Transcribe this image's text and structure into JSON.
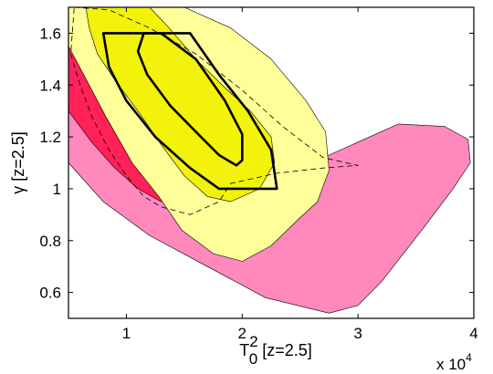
{
  "chart_data": {
    "type": "contour",
    "xlabel": "T_0^2 [z=2.5]",
    "xlabel_main": "T",
    "xlabel_sub": "0",
    "xlabel_sup": "2",
    "xlabel_tail": " [z=2.5]",
    "ylabel": "γ [z=2.5]",
    "x_multiplier_label": "x 10",
    "x_multiplier_exp": "4",
    "x_multiplier_power": 4,
    "xlim": [
      0.5,
      4.0
    ],
    "ylim": [
      0.5,
      1.7
    ],
    "xticks": [
      1,
      2,
      3,
      4
    ],
    "yticks": [
      0.6,
      0.8,
      1.0,
      1.2,
      1.4,
      1.6
    ],
    "xtick_labels": [
      "1",
      "2",
      "3",
      "4"
    ],
    "ytick_labels": [
      "0.6",
      "0.8",
      "1",
      "1.2",
      "1.4",
      "1.6"
    ],
    "grid": false,
    "colors": {
      "pink_region": "#ff88bd",
      "red_region": "#ff2157",
      "yellow_outer": "#ffff99",
      "yellow_inner": "#f2f20a",
      "outline": "#000000"
    },
    "regions": [
      {
        "name": "pink-region",
        "fill": "#ff88bd",
        "points": [
          [
            0.5,
            1.1
          ],
          [
            0.8,
            0.95
          ],
          [
            1.2,
            0.82
          ],
          [
            1.7,
            0.7
          ],
          [
            2.2,
            0.58
          ],
          [
            2.75,
            0.52
          ],
          [
            3.0,
            0.55
          ],
          [
            3.2,
            0.64
          ],
          [
            3.55,
            0.84
          ],
          [
            3.82,
            1.0
          ],
          [
            3.97,
            1.1
          ],
          [
            3.95,
            1.19
          ],
          [
            3.75,
            1.24
          ],
          [
            3.35,
            1.25
          ],
          [
            3.0,
            1.18
          ],
          [
            2.6,
            1.1
          ],
          [
            2.2,
            1.08
          ],
          [
            1.8,
            1.14
          ],
          [
            1.2,
            1.29
          ],
          [
            0.8,
            1.45
          ],
          [
            0.5,
            1.55
          ]
        ]
      },
      {
        "name": "red-region",
        "fill": "#ff2157",
        "points": [
          [
            0.5,
            1.3
          ],
          [
            0.5,
            1.55
          ],
          [
            0.55,
            1.56
          ],
          [
            0.75,
            1.44
          ],
          [
            0.9,
            1.26
          ],
          [
            1.05,
            1.18
          ],
          [
            1.3,
            1.06
          ],
          [
            1.45,
            0.97
          ],
          [
            1.3,
            0.95
          ],
          [
            1.1,
            1.0
          ],
          [
            0.9,
            1.08
          ],
          [
            0.7,
            1.18
          ]
        ]
      },
      {
        "name": "yellow-outer-region",
        "fill": "#ffff99",
        "points": [
          [
            0.55,
            1.7
          ],
          [
            1.5,
            1.7
          ],
          [
            1.9,
            1.62
          ],
          [
            2.25,
            1.5
          ],
          [
            2.55,
            1.34
          ],
          [
            2.72,
            1.22
          ],
          [
            2.75,
            1.07
          ],
          [
            2.65,
            0.95
          ],
          [
            2.48,
            0.88
          ],
          [
            2.25,
            0.78
          ],
          [
            2.0,
            0.72
          ],
          [
            1.75,
            0.75
          ],
          [
            1.48,
            0.84
          ],
          [
            1.28,
            0.97
          ],
          [
            1.05,
            1.1
          ],
          [
            0.82,
            1.28
          ],
          [
            0.62,
            1.45
          ],
          [
            0.5,
            1.55
          ],
          [
            0.5,
            1.7
          ]
        ]
      },
      {
        "name": "yellow-inner-region",
        "fill": "#f2f20a",
        "points": [
          [
            0.65,
            1.7
          ],
          [
            1.2,
            1.7
          ],
          [
            1.35,
            1.63
          ],
          [
            1.6,
            1.5
          ],
          [
            1.85,
            1.39
          ],
          [
            2.07,
            1.3
          ],
          [
            2.25,
            1.2
          ],
          [
            2.28,
            1.1
          ],
          [
            2.15,
            1.0
          ],
          [
            1.9,
            0.95
          ],
          [
            1.7,
            0.97
          ],
          [
            1.5,
            1.05
          ],
          [
            1.3,
            1.17
          ],
          [
            1.1,
            1.3
          ],
          [
            0.9,
            1.42
          ],
          [
            0.75,
            1.52
          ],
          [
            0.68,
            1.62
          ]
        ]
      }
    ],
    "outlines": [
      {
        "name": "thick-outer-contour",
        "dashed": false,
        "points": [
          [
            0.8,
            1.6
          ],
          [
            1.55,
            1.6
          ],
          [
            1.8,
            1.44
          ],
          [
            2.05,
            1.3
          ],
          [
            2.25,
            1.15
          ],
          [
            2.3,
            1.0
          ],
          [
            1.8,
            1.0
          ],
          [
            1.55,
            1.08
          ],
          [
            1.25,
            1.2
          ],
          [
            1.0,
            1.34
          ],
          [
            0.85,
            1.47
          ]
        ]
      },
      {
        "name": "thick-inner-contour",
        "dashed": false,
        "points": [
          [
            1.3,
            1.6
          ],
          [
            1.6,
            1.5
          ],
          [
            1.85,
            1.34
          ],
          [
            2.0,
            1.21
          ],
          [
            2.0,
            1.11
          ],
          [
            1.95,
            1.09
          ],
          [
            1.8,
            1.13
          ],
          [
            1.6,
            1.22
          ],
          [
            1.38,
            1.32
          ],
          [
            1.18,
            1.44
          ],
          [
            1.1,
            1.53
          ],
          [
            1.15,
            1.6
          ]
        ]
      },
      {
        "name": "dashed-contour",
        "dashed": true,
        "points": [
          [
            0.55,
            1.7
          ],
          [
            0.85,
            1.69
          ],
          [
            1.2,
            1.62
          ],
          [
            1.6,
            1.52
          ],
          [
            2.0,
            1.38
          ],
          [
            2.35,
            1.24
          ],
          [
            2.7,
            1.12
          ],
          [
            3.0,
            1.09
          ],
          [
            2.7,
            1.08
          ],
          [
            2.3,
            1.06
          ],
          [
            1.9,
            1.02
          ],
          [
            1.8,
            0.95
          ],
          [
            1.55,
            0.9
          ],
          [
            1.3,
            0.93
          ],
          [
            1.15,
            0.97
          ],
          [
            1.0,
            1.05
          ],
          [
            0.85,
            1.15
          ],
          [
            0.7,
            1.28
          ],
          [
            0.6,
            1.4
          ],
          [
            0.52,
            1.52
          ]
        ]
      }
    ]
  }
}
